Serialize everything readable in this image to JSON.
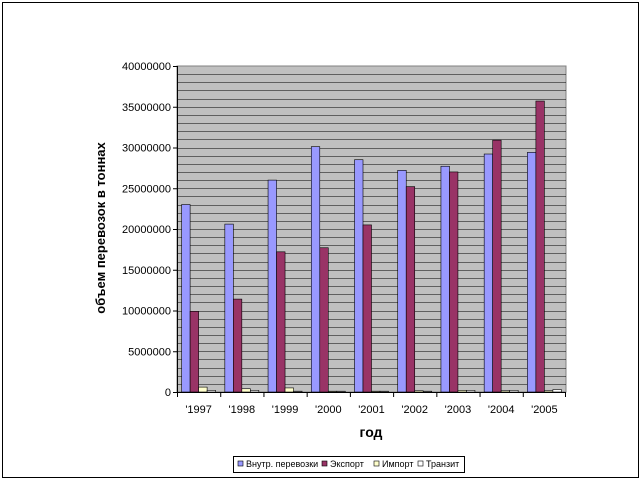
{
  "chart_data": {
    "type": "bar",
    "title": "",
    "xlabel": "год",
    "ylabel": "объем перевозок в тоннах",
    "ylim": [
      0,
      40000000
    ],
    "ytick_step": 5000000,
    "grid": "horizontal",
    "plot_background": "#c0c0c0",
    "legend_position": "bottom",
    "categories": [
      "'1997",
      "'1998",
      "'1999",
      "'2000",
      "'2001",
      "'2002",
      "'2003",
      "'2004",
      "'2005"
    ],
    "series": [
      {
        "name": "Внутр. перевозки",
        "color": "#9999ff",
        "values": [
          23000000,
          20600000,
          26000000,
          30100000,
          28500000,
          27200000,
          27700000,
          29200000,
          29400000
        ]
      },
      {
        "name": "Экспорт",
        "color": "#993366",
        "values": [
          9900000,
          11400000,
          17200000,
          17700000,
          20500000,
          25200000,
          27000000,
          30900000,
          35700000
        ]
      },
      {
        "name": "Импорт",
        "color": "#ffffcc",
        "values": [
          600000,
          400000,
          500000,
          50000,
          100000,
          150000,
          200000,
          150000,
          150000
        ]
      },
      {
        "name": "Транзит",
        "color": "#ffffff",
        "values": [
          200000,
          200000,
          100000,
          20000,
          20000,
          100000,
          200000,
          200000,
          300000
        ]
      }
    ]
  }
}
